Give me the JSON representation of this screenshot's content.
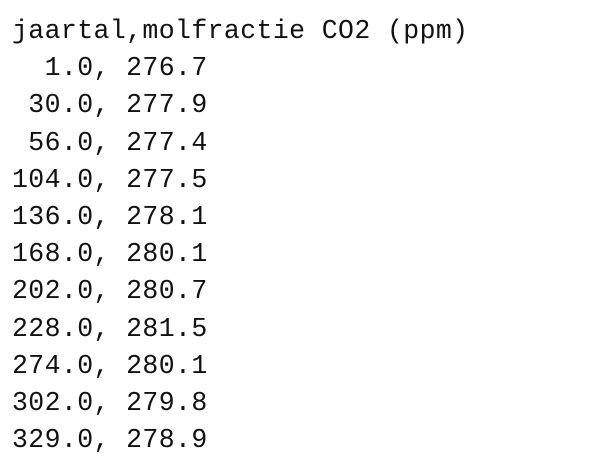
{
  "document": {
    "header": "jaartal,molfractie CO2 (ppm)",
    "rows": [
      "  1.0, 276.7",
      " 30.0, 277.9",
      " 56.0, 277.4",
      "104.0, 277.5",
      "136.0, 278.1",
      "168.0, 280.1",
      "202.0, 280.7",
      "228.0, 281.5",
      "274.0, 280.1",
      "302.0, 279.8",
      "329.0, 278.9"
    ]
  }
}
